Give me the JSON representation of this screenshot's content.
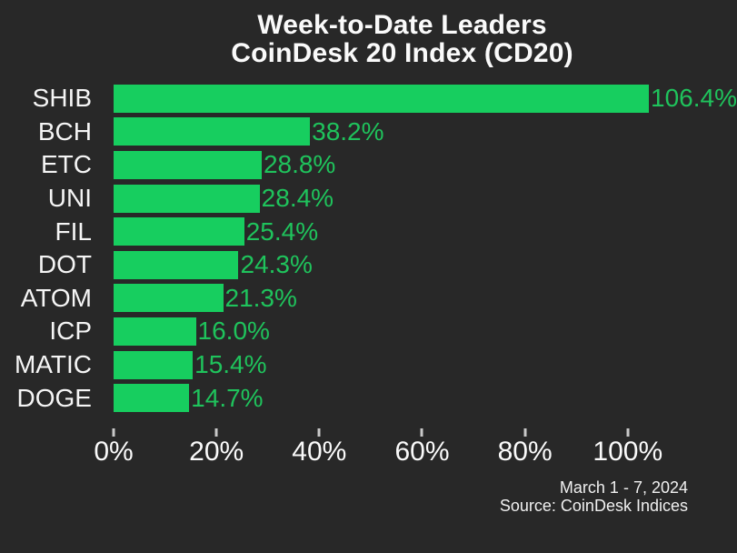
{
  "title": {
    "line1": "Week-to-Date Leaders",
    "line2": "CoinDesk 20 Index (CD20)"
  },
  "chart_data": {
    "type": "bar",
    "orientation": "horizontal",
    "title": "Week-to-Date Leaders CoinDesk 20 Index (CD20)",
    "categories": [
      "SHIB",
      "BCH",
      "ETC",
      "UNI",
      "FIL",
      "DOT",
      "ATOM",
      "ICP",
      "MATIC",
      "DOGE"
    ],
    "values": [
      106.4,
      38.2,
      28.8,
      28.4,
      25.4,
      24.3,
      21.3,
      16.0,
      15.4,
      14.7
    ],
    "value_labels": [
      "106.4%",
      "38.2%",
      "28.8%",
      "28.4%",
      "25.4%",
      "24.3%",
      "21.3%",
      "16.0%",
      "15.4%",
      "14.7%"
    ],
    "x_ticks": [
      "0%",
      "20%",
      "40%",
      "60%",
      "80%",
      "100%"
    ],
    "x_tick_values": [
      0,
      20,
      40,
      60,
      80,
      100
    ],
    "xlim": [
      0,
      112
    ],
    "xlabel": "",
    "ylabel": "",
    "grid": false,
    "legend": "none",
    "bar_color": "#17ce5f",
    "value_label_color": "#1fc35c",
    "background_color": "#282828",
    "text_color": "#fafafa"
  },
  "footer": {
    "date_range": "March 1 - 7, 2024",
    "source": "Source: CoinDesk Indices"
  }
}
